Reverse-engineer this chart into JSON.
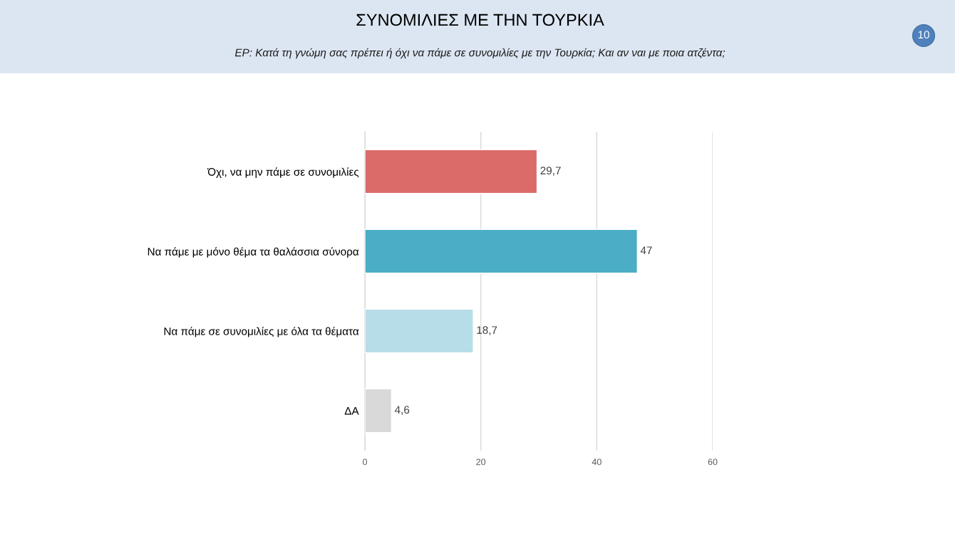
{
  "chart_data": {
    "type": "bar",
    "orientation": "horizontal",
    "title": "ΣΥΝΟΜΙΛΙΕΣ ΜΕ ΤΗΝ ΤΟΥΡΚΙΑ",
    "subtitle": "ΕΡ: Κατά τη γνώμη σας πρέπει ή όχι να πάμε σε συνομιλίες με την Τουρκία; Και αν ναι με ποια ατζέντα;",
    "categories": [
      "Όχι, να μην πάμε σε συνομιλίες",
      "Να πάμε με μόνο θέμα τα θαλάσσια σύνορα",
      "Να πάμε σε συνομιλίες με όλα τα θέματα",
      "ΔΑ"
    ],
    "values": [
      29.7,
      47,
      18.7,
      4.6
    ],
    "colors": [
      "#db6b69",
      "#4badc6",
      "#b7dde8",
      "#d9d9d9"
    ],
    "value_labels": [
      "29,7",
      "47",
      "18,7",
      "4,6"
    ],
    "xlim": [
      0,
      60
    ],
    "xticks": [
      0,
      20,
      40,
      60
    ],
    "grid": "x",
    "annotations": [
      "10"
    ]
  }
}
